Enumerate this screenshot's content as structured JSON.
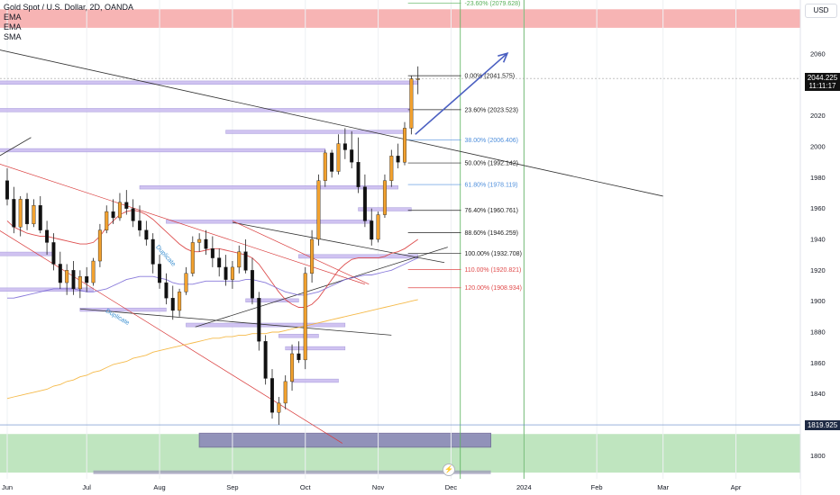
{
  "header": {
    "title": "Gold Spot / U.S. Dollar, 2D, OANDA",
    "indicators": [
      "EMA",
      "EMA",
      "SMA"
    ]
  },
  "currency_button": "USD",
  "price_tag": {
    "price": "2044.225",
    "countdown": "11:11:17"
  },
  "low_tag": {
    "price": "1819.925"
  },
  "colors": {
    "up": "#f2a12e",
    "down": "#111111",
    "zone": "#cbbdf0",
    "zone_edge": "#9c8fd6",
    "support": "#a9dcaa",
    "resistance": "#f6a7a7",
    "fib_black": "#222222",
    "fib_blue": "#4f8fdc",
    "fib_red": "#e04a4a",
    "ema_red": "#d93b3b",
    "ema_purple": "#7b6ad6",
    "sma_orange": "#f4b236",
    "arrow": "#4a5fc1"
  },
  "annotations": [
    "Duplicate",
    "Duplicate"
  ],
  "chart_data": {
    "type": "candlestick",
    "title": "Gold Spot / U.S. Dollar, 2D, OANDA",
    "ylim": [
      1785,
      2095
    ],
    "y_ticks": [
      1800,
      1820,
      1840,
      1860,
      1880,
      1900,
      1920,
      1940,
      1960,
      1980,
      2000,
      2020,
      2040,
      2060
    ],
    "x_ticks": [
      "Jun",
      "Jul",
      "Aug",
      "Sep",
      "Oct",
      "Nov",
      "Dec",
      "2024",
      "Feb",
      "Mar",
      "Apr"
    ],
    "x_tick_index": [
      0,
      12,
      23,
      34,
      45,
      56,
      67,
      78,
      89,
      99,
      110
    ],
    "candles": [
      [
        1978,
        1986,
        1962,
        1966
      ],
      [
        1966,
        1974,
        1944,
        1948
      ],
      [
        1948,
        1968,
        1942,
        1966
      ],
      [
        1966,
        1970,
        1946,
        1950
      ],
      [
        1950,
        1966,
        1948,
        1962
      ],
      [
        1962,
        1968,
        1944,
        1946
      ],
      [
        1946,
        1952,
        1930,
        1938
      ],
      [
        1938,
        1944,
        1920,
        1924
      ],
      [
        1924,
        1932,
        1908,
        1912
      ],
      [
        1912,
        1924,
        1904,
        1920
      ],
      [
        1920,
        1926,
        1904,
        1908
      ],
      [
        1908,
        1920,
        1902,
        1916
      ],
      [
        1916,
        1922,
        1906,
        1912
      ],
      [
        1912,
        1928,
        1910,
        1926
      ],
      [
        1926,
        1950,
        1922,
        1946
      ],
      [
        1946,
        1962,
        1944,
        1958
      ],
      [
        1958,
        1966,
        1950,
        1954
      ],
      [
        1954,
        1970,
        1952,
        1964
      ],
      [
        1964,
        1972,
        1956,
        1960
      ],
      [
        1960,
        1966,
        1948,
        1952
      ],
      [
        1952,
        1962,
        1942,
        1946
      ],
      [
        1946,
        1952,
        1936,
        1940
      ],
      [
        1940,
        1944,
        1918,
        1924
      ],
      [
        1924,
        1930,
        1908,
        1912
      ],
      [
        1912,
        1918,
        1898,
        1902
      ],
      [
        1902,
        1910,
        1888,
        1894
      ],
      [
        1894,
        1908,
        1890,
        1906
      ],
      [
        1906,
        1922,
        1904,
        1918
      ],
      [
        1918,
        1942,
        1916,
        1938
      ],
      [
        1938,
        1944,
        1932,
        1940
      ],
      [
        1940,
        1946,
        1930,
        1934
      ],
      [
        1934,
        1942,
        1922,
        1928
      ],
      [
        1928,
        1934,
        1916,
        1922
      ],
      [
        1922,
        1930,
        1910,
        1914
      ],
      [
        1914,
        1926,
        1908,
        1922
      ],
      [
        1922,
        1936,
        1918,
        1932
      ],
      [
        1932,
        1940,
        1918,
        1920
      ],
      [
        1920,
        1928,
        1898,
        1902
      ],
      [
        1902,
        1906,
        1868,
        1874
      ],
      [
        1874,
        1878,
        1846,
        1850
      ],
      [
        1850,
        1856,
        1824,
        1828
      ],
      [
        1828,
        1838,
        1820,
        1834
      ],
      [
        1834,
        1852,
        1830,
        1848
      ],
      [
        1848,
        1872,
        1842,
        1866
      ],
      [
        1866,
        1874,
        1860,
        1862
      ],
      [
        1862,
        1922,
        1856,
        1918
      ],
      [
        1918,
        1946,
        1912,
        1940
      ],
      [
        1940,
        1982,
        1936,
        1978
      ],
      [
        1978,
        1998,
        1974,
        1996
      ],
      [
        1996,
        1998,
        1980,
        1984
      ],
      [
        1984,
        2008,
        1982,
        2002
      ],
      [
        2002,
        2012,
        1992,
        1998
      ],
      [
        1998,
        2010,
        1986,
        1990
      ],
      [
        1990,
        2006,
        1970,
        1974
      ],
      [
        1974,
        1982,
        1948,
        1952
      ],
      [
        1952,
        1960,
        1936,
        1940
      ],
      [
        1940,
        1958,
        1938,
        1956
      ],
      [
        1956,
        1982,
        1954,
        1978
      ],
      [
        1978,
        1998,
        1974,
        1994
      ],
      [
        1994,
        2002,
        1986,
        1990
      ],
      [
        1990,
        2016,
        1988,
        2012
      ],
      [
        2012,
        2046,
        2008,
        2044
      ],
      [
        2044,
        2052,
        2034,
        2044
      ]
    ],
    "ema_red": [
      1952,
      1948,
      1946,
      1944,
      1943,
      1942,
      1942,
      1941,
      1940,
      1939,
      1938,
      1937,
      1937,
      1938,
      1942,
      1948,
      1952,
      1956,
      1958,
      1959,
      1958,
      1956,
      1953,
      1949,
      1945,
      1941,
      1937,
      1934,
      1932,
      1932,
      1933,
      1934,
      1934,
      1933,
      1932,
      1931,
      1930,
      1928,
      1924,
      1918,
      1912,
      1906,
      1901,
      1898,
      1896,
      1896,
      1898,
      1902,
      1908,
      1914,
      1920,
      1924,
      1927,
      1928,
      1928,
      1928,
      1928,
      1929,
      1931,
      1932,
      1934,
      1937,
      1940
    ],
    "ema_purple": [
      1902,
      1902,
      1903,
      1904,
      1905,
      1906,
      1907,
      1908,
      1908,
      1908,
      1908,
      1907,
      1906,
      1906,
      1907,
      1908,
      1910,
      1912,
      1914,
      1915,
      1916,
      1916,
      1916,
      1915,
      1914,
      1912,
      1911,
      1911,
      1911,
      1912,
      1913,
      1913,
      1913,
      1913,
      1913,
      1913,
      1914,
      1914,
      1913,
      1912,
      1910,
      1908,
      1906,
      1905,
      1904,
      1904,
      1905,
      1906,
      1908,
      1910,
      1912,
      1914,
      1915,
      1916,
      1917,
      1917,
      1918,
      1919,
      1920,
      1922,
      1924,
      1926,
      1928
    ],
    "sma_orange": [
      1837,
      1838,
      1839,
      1840,
      1841,
      1842,
      1843,
      1845,
      1846,
      1848,
      1849,
      1851,
      1852,
      1854,
      1855,
      1857,
      1859,
      1860,
      1861,
      1863,
      1864,
      1865,
      1867,
      1868,
      1869,
      1870,
      1871,
      1872,
      1873,
      1874,
      1875,
      1876,
      1876,
      1877,
      1877,
      1878,
      1878,
      1879,
      1879,
      1879,
      1880,
      1880,
      1881,
      1882,
      1883,
      1884,
      1885,
      1886,
      1887,
      1888,
      1889,
      1890,
      1891,
      1892,
      1893,
      1894,
      1895,
      1896,
      1897,
      1898,
      1899,
      1900,
      1901
    ],
    "fib_levels": [
      {
        "label": "-23.60% (2079.628)",
        "value": 2093.0,
        "color": "green"
      },
      {
        "label": "0.00% (2041.575)",
        "value": 2046.0,
        "color": "black"
      },
      {
        "label": "23.60% (2023.523)",
        "value": 2024.0,
        "color": "black"
      },
      {
        "label": "38.00% (2006.406)",
        "value": 2004.5,
        "color": "blue"
      },
      {
        "label": "50.00% (1992.142)",
        "value": 1989.5,
        "color": "black"
      },
      {
        "label": "61.80% (1978.119)",
        "value": 1975.5,
        "color": "blue"
      },
      {
        "label": "76.40% (1960.761)",
        "value": 1958.8,
        "color": "black"
      },
      {
        "label": "88.60% (1946.259)",
        "value": 1944.3,
        "color": "black"
      },
      {
        "label": "100.00% (1932.708)",
        "value": 1931.0,
        "color": "black"
      },
      {
        "label": "110.00% (1920.821)",
        "value": 1920.4,
        "color": "red"
      },
      {
        "label": "120.00% (1908.934)",
        "value": 1908.7,
        "color": "red"
      }
    ],
    "zones": [
      {
        "x0": -2,
        "x1": 62,
        "y0": 2040.4,
        "y1": 2042.6
      },
      {
        "x0": -2,
        "x1": 61,
        "y0": 2022.6,
        "y1": 2024.8
      },
      {
        "x0": 33,
        "x1": 60,
        "y0": 2008.5,
        "y1": 2010.7
      },
      {
        "x0": -2,
        "x1": 48,
        "y0": 1996.6,
        "y1": 1998.8
      },
      {
        "x0": 20,
        "x1": 59,
        "y0": 1972.6,
        "y1": 1974.8
      },
      {
        "x0": 53,
        "x1": 61,
        "y0": 1958.4,
        "y1": 1960.6
      },
      {
        "x0": 24,
        "x1": 55,
        "y0": 1950.4,
        "y1": 1952.6
      },
      {
        "x0": -2,
        "x1": 7,
        "y0": 1929.4,
        "y1": 1931.8
      },
      {
        "x0": 44,
        "x1": 62,
        "y0": 1927.8,
        "y1": 1930.2
      },
      {
        "x0": -2,
        "x1": 13,
        "y0": 1906.4,
        "y1": 1908.6
      },
      {
        "x0": 36,
        "x1": 44,
        "y0": 1899.4,
        "y1": 1901.6
      },
      {
        "x0": 11,
        "x1": 24,
        "y0": 1893.4,
        "y1": 1895.6
      },
      {
        "x0": 27,
        "x1": 51,
        "y0": 1883.4,
        "y1": 1885.8
      },
      {
        "x0": 41,
        "x1": 47,
        "y0": 1876.4,
        "y1": 1878.6
      },
      {
        "x0": 42,
        "x1": 51,
        "y0": 1868.4,
        "y1": 1870.6
      },
      {
        "x0": 43,
        "x1": 50,
        "y0": 1847.4,
        "y1": 1849.6
      }
    ],
    "support_band": {
      "y0": 1789,
      "y1": 1814
    },
    "resistance_band": {
      "y0": 2077,
      "y1": 2089
    }
  }
}
